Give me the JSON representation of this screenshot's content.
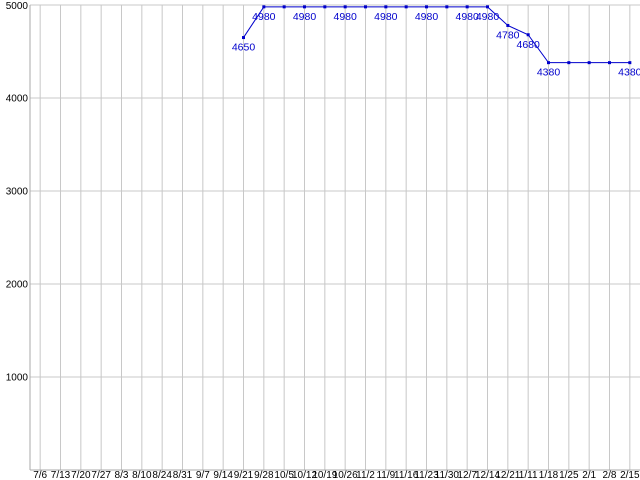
{
  "chart_data": {
    "type": "line",
    "title": "",
    "xlabel": "",
    "ylabel": "",
    "x_labels": [
      "7/6",
      "7/13",
      "7/20",
      "7/27",
      "8/3",
      "8/10",
      "8/24",
      "8/31",
      "9/7",
      "9/14",
      "9/21",
      "9/28",
      "10/5",
      "10/12",
      "10/19",
      "10/26",
      "11/2",
      "11/9",
      "11/16",
      "11/23",
      "11/30",
      "12/7",
      "12/14",
      "12/21",
      "1/11",
      "1/18",
      "1/25",
      "2/1",
      "2/8",
      "2/15"
    ],
    "values": [
      null,
      null,
      null,
      null,
      null,
      null,
      null,
      null,
      null,
      null,
      4650,
      4980,
      4980,
      4980,
      4980,
      4980,
      4980,
      4980,
      4980,
      4980,
      4980,
      4980,
      4980,
      4780,
      4680,
      4380,
      4380,
      4380,
      4380,
      4380
    ],
    "point_labels": [
      {
        "index": 10,
        "text": "4650"
      },
      {
        "index": 11,
        "text": "4980"
      },
      {
        "index": 13,
        "text": "4980"
      },
      {
        "index": 15,
        "text": "4980"
      },
      {
        "index": 17,
        "text": "4980"
      },
      {
        "index": 19,
        "text": "4980"
      },
      {
        "index": 21,
        "text": "4980"
      },
      {
        "index": 22,
        "text": "4980"
      },
      {
        "index": 23,
        "text": "4780"
      },
      {
        "index": 24,
        "text": "4680"
      },
      {
        "index": 25,
        "text": "4380"
      },
      {
        "index": 29,
        "text": "4380"
      }
    ],
    "y_ticks": [
      1000,
      2000,
      3000,
      4000,
      5000
    ],
    "ylim": [
      0,
      5000
    ],
    "grid": true,
    "legend": "none",
    "colors": {
      "line": "#0000cc",
      "point": "#0000cc",
      "point_label": "#0000cc",
      "grid": "#c8c8c8",
      "axis": "#aaaaaa",
      "axis_text": "#000000",
      "background": "#ffffff"
    }
  }
}
